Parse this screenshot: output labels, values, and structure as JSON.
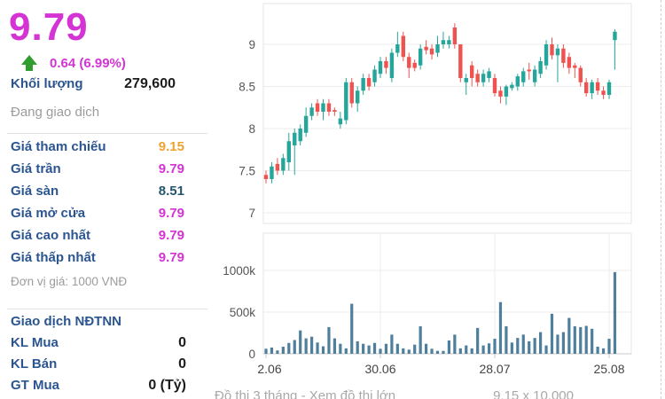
{
  "quote": {
    "price": "9.79",
    "change": "0.64 (6.99%)",
    "volume_label": "Khối lượng",
    "volume_value": "279,600",
    "status": "Đang giao dịch",
    "unit_note": "Đơn vị giá: 1000 VNĐ",
    "rows": [
      {
        "label": "Giá tham chiếu",
        "value": "9.15",
        "color": "#f0a231"
      },
      {
        "label": "Giá trần",
        "value": "9.79",
        "color": "#d334d3"
      },
      {
        "label": "Giá sàn",
        "value": "8.51",
        "color": "#24556e"
      },
      {
        "label": "Giá mở cửa",
        "value": "9.79",
        "color": "#d334d3"
      },
      {
        "label": "Giá cao nhất",
        "value": "9.79",
        "color": "#d334d3"
      },
      {
        "label": "Giá thấp nhất",
        "value": "9.79",
        "color": "#d334d3"
      }
    ],
    "foreign": {
      "title": "Giao dịch NĐTNN",
      "rows": [
        {
          "label": "KL Mua",
          "value": "0"
        },
        {
          "label": "KL Bán",
          "value": "0"
        },
        {
          "label": "GT Mua",
          "value": "0 (Tỷ)"
        }
      ]
    }
  },
  "colors": {
    "price_magenta": "#d334d3",
    "arrow_green": "#2f9e2f",
    "label_blue": "#2b5591",
    "muted_gray": "#9b9b9b"
  },
  "footer": {
    "left_clipped": "Đồ thị 3 tháng - Xem đồ thị lớn",
    "right_clipped": "9.15 x 10,000"
  },
  "chart_data": [
    {
      "type": "candlestick",
      "title": "",
      "xlabel": "",
      "ylabel": "",
      "grid": true,
      "ylim": [
        6.85,
        9.48
      ],
      "y_tick_labels": [
        "9",
        "8.5",
        "8",
        "7.5",
        "7"
      ],
      "y_tick_values": [
        9,
        8.5,
        8,
        7.5,
        7
      ],
      "x_tick_labels": [
        "2.06",
        "30.06",
        "28.07",
        "25.08"
      ],
      "x_tick_days": [
        0,
        20,
        40,
        60
      ],
      "up_color": "#26a69a",
      "down_color": "#ef5350",
      "ohlc": [
        [
          7.45,
          7.5,
          7.35,
          7.4
        ],
        [
          7.4,
          7.6,
          7.35,
          7.55
        ],
        [
          7.58,
          7.65,
          7.45,
          7.5
        ],
        [
          7.5,
          7.7,
          7.45,
          7.65
        ],
        [
          7.6,
          7.95,
          7.5,
          7.85
        ],
        [
          7.8,
          8.0,
          7.45,
          7.95
        ],
        [
          7.85,
          8.05,
          7.8,
          8.0
        ],
        [
          7.95,
          8.25,
          7.9,
          8.15
        ],
        [
          8.15,
          8.3,
          8.1,
          8.25
        ],
        [
          8.3,
          8.35,
          8.15,
          8.2
        ],
        [
          8.2,
          8.35,
          8.1,
          8.3
        ],
        [
          8.3,
          8.35,
          8.15,
          8.2
        ],
        [
          8.22,
          8.25,
          8.15,
          8.2
        ],
        [
          8.05,
          8.2,
          8.0,
          8.12
        ],
        [
          8.1,
          8.6,
          8.05,
          8.55
        ],
        [
          8.55,
          8.6,
          8.25,
          8.3
        ],
        [
          8.3,
          8.5,
          8.2,
          8.45
        ],
        [
          8.45,
          8.65,
          8.4,
          8.6
        ],
        [
          8.6,
          8.65,
          8.45,
          8.5
        ],
        [
          8.55,
          8.75,
          8.5,
          8.7
        ],
        [
          8.65,
          8.85,
          8.6,
          8.8
        ],
        [
          8.8,
          8.85,
          8.65,
          8.72
        ],
        [
          8.6,
          8.95,
          8.55,
          8.9
        ],
        [
          8.9,
          9.15,
          8.85,
          9.0
        ],
        [
          9.1,
          9.15,
          8.8,
          8.85
        ],
        [
          8.85,
          8.9,
          8.6,
          8.72
        ],
        [
          8.78,
          8.82,
          8.68,
          8.72
        ],
        [
          8.75,
          9.0,
          8.7,
          8.95
        ],
        [
          8.97,
          9.05,
          8.88,
          8.93
        ],
        [
          8.95,
          9.0,
          8.82,
          8.88
        ],
        [
          8.9,
          9.1,
          8.85,
          9.0
        ],
        [
          9.0,
          9.15,
          8.95,
          9.05
        ],
        [
          9.0,
          9.1,
          8.95,
          9.05
        ],
        [
          9.2,
          9.25,
          8.95,
          9.0
        ],
        [
          9.0,
          9.0,
          8.55,
          8.6
        ],
        [
          8.55,
          8.65,
          8.4,
          8.6
        ],
        [
          8.75,
          8.8,
          8.5,
          8.6
        ],
        [
          8.65,
          8.7,
          8.5,
          8.55
        ],
        [
          8.55,
          8.7,
          8.5,
          8.65
        ],
        [
          8.6,
          8.72,
          8.55,
          8.68
        ],
        [
          8.6,
          8.65,
          8.38,
          8.42
        ],
        [
          8.45,
          8.5,
          8.3,
          8.38
        ],
        [
          8.38,
          8.52,
          8.28,
          8.5
        ],
        [
          8.48,
          8.55,
          8.45,
          8.52
        ],
        [
          8.5,
          8.65,
          8.45,
          8.62
        ],
        [
          8.55,
          8.72,
          8.5,
          8.68
        ],
        [
          8.7,
          8.78,
          8.58,
          8.68
        ],
        [
          8.55,
          8.75,
          8.5,
          8.7
        ],
        [
          8.65,
          8.85,
          8.6,
          8.8
        ],
        [
          8.75,
          9.05,
          8.7,
          9.0
        ],
        [
          9.0,
          9.08,
          8.82,
          8.87
        ],
        [
          8.87,
          9.0,
          8.55,
          8.95
        ],
        [
          8.95,
          9.0,
          8.72,
          8.78
        ],
        [
          8.85,
          8.9,
          8.65,
          8.72
        ],
        [
          8.75,
          8.78,
          8.6,
          8.72
        ],
        [
          8.72,
          8.75,
          8.5,
          8.55
        ],
        [
          8.55,
          8.6,
          8.38,
          8.42
        ],
        [
          8.42,
          8.58,
          8.35,
          8.55
        ],
        [
          8.55,
          8.6,
          8.4,
          8.45
        ],
        [
          8.45,
          8.5,
          8.35,
          8.4
        ],
        [
          8.4,
          8.58,
          8.35,
          8.55
        ],
        [
          9.05,
          9.18,
          8.7,
          9.15
        ]
      ]
    },
    {
      "type": "bar",
      "title": "",
      "xlabel": "",
      "ylabel": "",
      "grid": true,
      "ylim": [
        0,
        1394
      ],
      "unit": "thousand shares",
      "y_tick_labels": [
        "1000k",
        "500k",
        "0"
      ],
      "y_tick_values": [
        1000,
        500,
        0
      ],
      "bar_color": "#4e7f9d",
      "values": [
        60,
        75,
        40,
        85,
        130,
        165,
        280,
        185,
        205,
        135,
        90,
        320,
        185,
        120,
        65,
        600,
        150,
        120,
        100,
        130,
        60,
        120,
        230,
        120,
        65,
        50,
        110,
        330,
        120,
        60,
        35,
        35,
        160,
        230,
        65,
        100,
        65,
        310,
        100,
        125,
        180,
        620,
        330,
        135,
        190,
        230,
        150,
        190,
        260,
        100,
        480,
        230,
        260,
        430,
        330,
        320,
        335,
        300,
        85,
        65,
        180,
        980
      ]
    }
  ]
}
